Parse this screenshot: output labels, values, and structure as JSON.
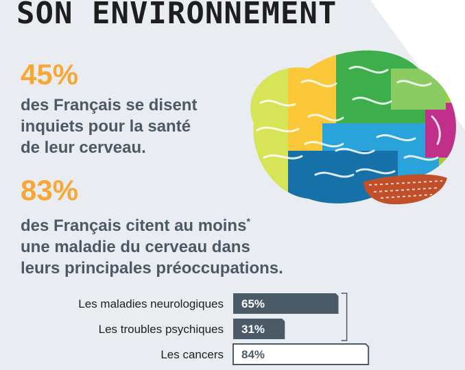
{
  "title": "SON ENVIRONNEMENT",
  "stat1": {
    "value": "45%",
    "lines": [
      "des Français se disent",
      "inquiets pour la santé",
      "de leur cerveau."
    ]
  },
  "stat2": {
    "value": "83%",
    "lines": [
      "des Français citent au moins",
      "une maladie du cerveau dans",
      "leurs principales préoccupations."
    ],
    "footnote_mark": "*"
  },
  "colors": {
    "accent": "#f7a733",
    "text": "#4c5964",
    "bar_dark": "#4a5a67",
    "background_panel": "#e9edf1"
  },
  "chart_data": {
    "type": "bar",
    "orientation": "horizontal",
    "categories": [
      "Les maladies neurologiques",
      "Les troubles psychiques",
      "Les cancers"
    ],
    "values": [
      65,
      31,
      84
    ],
    "value_labels": [
      "65%",
      "31%",
      "84%"
    ],
    "styles": [
      "filled",
      "filled",
      "outlined"
    ],
    "bracket_groups": [
      [
        0,
        1
      ]
    ],
    "xlim": [
      0,
      100
    ]
  }
}
